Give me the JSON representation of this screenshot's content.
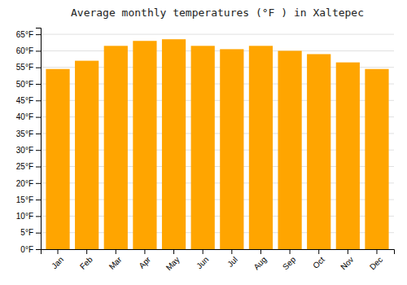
{
  "chart_data": {
    "type": "bar",
    "title": "Average monthly temperatures (°F ) in Xaltepec",
    "categories": [
      "Jan",
      "Feb",
      "Mar",
      "Apr",
      "May",
      "Jun",
      "Jul",
      "Aug",
      "Sep",
      "Oct",
      "Nov",
      "Dec"
    ],
    "values": [
      54.5,
      57.0,
      61.5,
      63.0,
      63.5,
      61.5,
      60.5,
      61.5,
      60.0,
      59.0,
      56.5,
      54.5
    ],
    "color": "#FFA500",
    "ylim": [
      0,
      67
    ],
    "yticks": [
      {
        "value": 0,
        "label": "0°F"
      },
      {
        "value": 5,
        "label": "5°F"
      },
      {
        "value": 10,
        "label": "10°F"
      },
      {
        "value": 15,
        "label": "15°F"
      },
      {
        "value": 20,
        "label": "20°F"
      },
      {
        "value": 25,
        "label": "25°F"
      },
      {
        "value": 30,
        "label": "30°F"
      },
      {
        "value": 35,
        "label": "35°F"
      },
      {
        "value": 40,
        "label": "40°F"
      },
      {
        "value": 45,
        "label": "45°F"
      },
      {
        "value": 50,
        "label": "50°F"
      },
      {
        "value": 55,
        "label": "55°F"
      },
      {
        "value": 60,
        "label": "60°F"
      },
      {
        "value": 65,
        "label": "65°F"
      }
    ],
    "grid": true
  }
}
